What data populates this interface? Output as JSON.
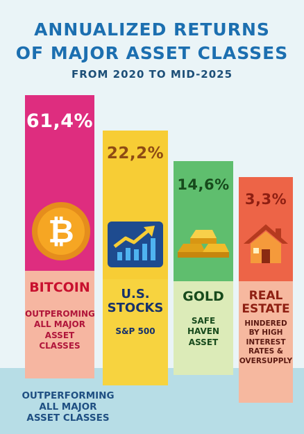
{
  "title_line1": "ANNUALIZED RETURNS",
  "title_line2": "OF MAJOR ASSET CLASSES",
  "subtitle": "FROM 2020 TO MID-2025",
  "footnote": "OUTPERFORMING\nALL MAJOR\nASSET CLASSES",
  "colors": {
    "title": "#1c6fb0",
    "bitcoin": "#de2d7f",
    "stocks": "#f7cd35",
    "gold": "#5fbe6e",
    "real_estate": "#ed6447"
  },
  "chart_data": {
    "type": "bar",
    "title": "ANNUALIZED RETURNS OF MAJOR ASSET CLASSES",
    "subtitle": "FROM 2020 TO MID-2025",
    "categories": [
      "BITCOIN",
      "U.S. STOCKS",
      "GOLD",
      "REAL ESTATE"
    ],
    "values": [
      61.4,
      22.2,
      14.6,
      3.3
    ],
    "value_labels": [
      "61,4%",
      "22,2%",
      "14,6%",
      "3,3%"
    ],
    "descriptions": [
      "OUTPEROMING\nALL MAJOR\nASSET\nCLASSES",
      "S&P 500",
      "SAFE\nHAVEN\nASSET",
      "HINDERED\nBY HIGH\nINTEREST\nRATES &\nOVERSUPPLY"
    ],
    "icons": [
      "bitcoin-coin-icon",
      "rising-chart-icon",
      "gold-bars-icon",
      "house-icon"
    ],
    "xlabel": "",
    "ylabel": "",
    "grid": false,
    "legend": "none"
  }
}
